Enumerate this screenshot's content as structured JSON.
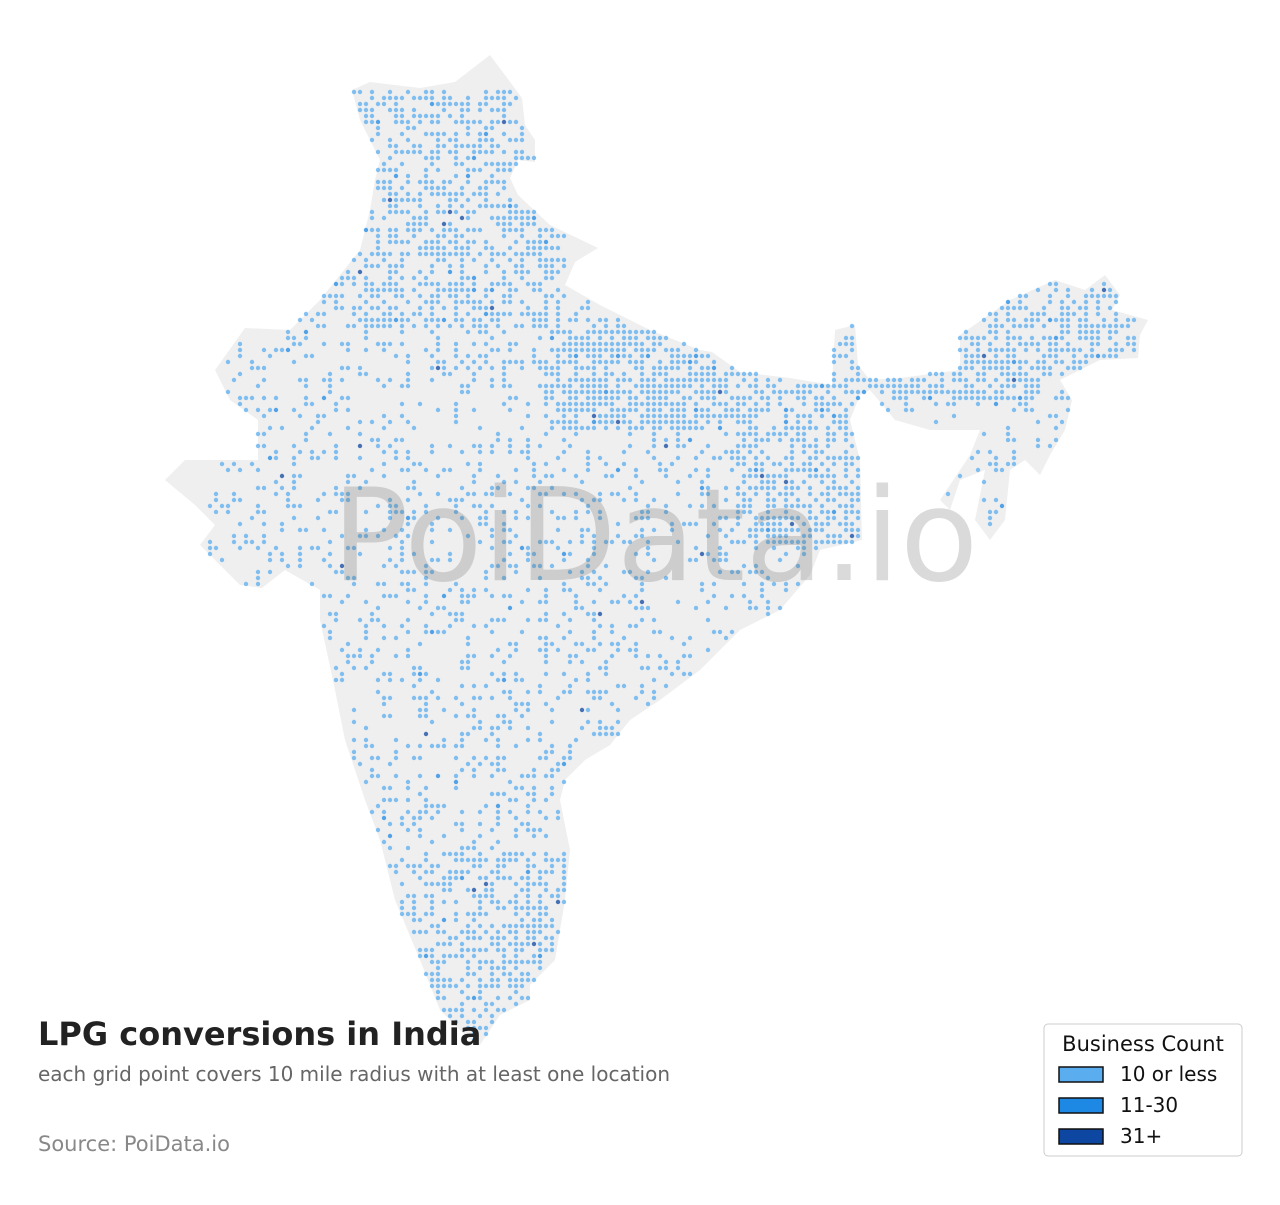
{
  "title": "LPG conversions in India",
  "subtitle": "each grid point covers 10 mile radius with at least one location",
  "source": "Source: PoiData.io",
  "watermark": "PoiData.io",
  "legend": {
    "title": "Business Count",
    "items": [
      {
        "label": "10 or less",
        "color": "#5aaeef"
      },
      {
        "label": "11-30",
        "color": "#1e88e5"
      },
      {
        "label": "31+",
        "color": "#0d47a1"
      }
    ]
  }
}
